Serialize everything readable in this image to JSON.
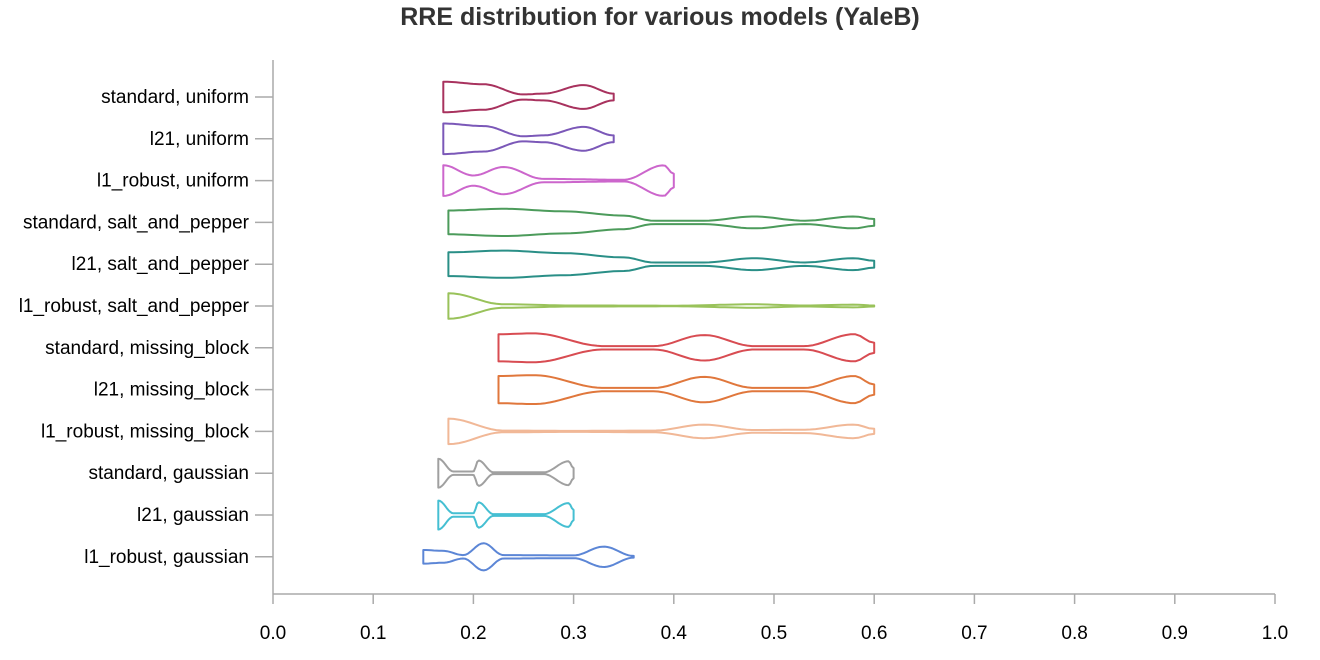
{
  "chart_data": {
    "type": "violin",
    "title": "RRE distribution for various models (YaleB)",
    "xlabel": "",
    "ylabel": "",
    "xlim": [
      0.0,
      1.0
    ],
    "x_ticks": [
      "0.0",
      "0.1",
      "0.2",
      "0.3",
      "0.4",
      "0.5",
      "0.6",
      "0.7",
      "0.8",
      "0.9",
      "1.0"
    ],
    "grid": false,
    "series": [
      {
        "name": "standard, uniform",
        "color": "#a8325e",
        "min": 0.17,
        "max": 0.34,
        "bulges": [
          [
            0.17,
            0.9
          ],
          [
            0.21,
            0.75
          ],
          [
            0.25,
            0.15
          ],
          [
            0.27,
            0.2
          ],
          [
            0.31,
            0.7
          ],
          [
            0.34,
            0.2
          ]
        ]
      },
      {
        "name": "l21, uniform",
        "color": "#7b58b8",
        "min": 0.17,
        "max": 0.34,
        "bulges": [
          [
            0.17,
            0.9
          ],
          [
            0.21,
            0.75
          ],
          [
            0.25,
            0.15
          ],
          [
            0.27,
            0.2
          ],
          [
            0.31,
            0.7
          ],
          [
            0.34,
            0.2
          ]
        ]
      },
      {
        "name": "l1_robust, uniform",
        "color": "#cc66cc",
        "min": 0.17,
        "max": 0.4,
        "bulges": [
          [
            0.17,
            0.9
          ],
          [
            0.2,
            0.3
          ],
          [
            0.23,
            0.8
          ],
          [
            0.27,
            0.1
          ],
          [
            0.35,
            0.05
          ],
          [
            0.39,
            0.9
          ],
          [
            0.4,
            0.4
          ]
        ]
      },
      {
        "name": "standard, salt_and_pepper",
        "color": "#4c9b5b",
        "min": 0.175,
        "max": 0.6,
        "bulges": [
          [
            0.175,
            0.7
          ],
          [
            0.23,
            0.8
          ],
          [
            0.29,
            0.65
          ],
          [
            0.35,
            0.4
          ],
          [
            0.38,
            0.1
          ],
          [
            0.43,
            0.1
          ],
          [
            0.48,
            0.35
          ],
          [
            0.53,
            0.1
          ],
          [
            0.58,
            0.35
          ],
          [
            0.6,
            0.2
          ]
        ]
      },
      {
        "name": "l21, salt_and_pepper",
        "color": "#2a8f87",
        "min": 0.175,
        "max": 0.6,
        "bulges": [
          [
            0.175,
            0.7
          ],
          [
            0.23,
            0.8
          ],
          [
            0.29,
            0.65
          ],
          [
            0.35,
            0.4
          ],
          [
            0.38,
            0.1
          ],
          [
            0.43,
            0.1
          ],
          [
            0.48,
            0.35
          ],
          [
            0.53,
            0.1
          ],
          [
            0.58,
            0.35
          ],
          [
            0.6,
            0.2
          ]
        ]
      },
      {
        "name": "l1_robust, salt_and_pepper",
        "color": "#99c25a",
        "min": 0.175,
        "max": 0.6,
        "bulges": [
          [
            0.175,
            0.75
          ],
          [
            0.23,
            0.1
          ],
          [
            0.3,
            0.03
          ],
          [
            0.4,
            0.02
          ],
          [
            0.48,
            0.1
          ],
          [
            0.53,
            0.03
          ],
          [
            0.58,
            0.08
          ],
          [
            0.6,
            0.03
          ]
        ]
      },
      {
        "name": "standard, missing_block",
        "color": "#d84c52",
        "min": 0.225,
        "max": 0.6,
        "bulges": [
          [
            0.225,
            0.8
          ],
          [
            0.26,
            0.85
          ],
          [
            0.33,
            0.1
          ],
          [
            0.38,
            0.1
          ],
          [
            0.43,
            0.75
          ],
          [
            0.48,
            0.1
          ],
          [
            0.53,
            0.1
          ],
          [
            0.58,
            0.8
          ],
          [
            0.6,
            0.3
          ]
        ]
      },
      {
        "name": "l21, missing_block",
        "color": "#e0773c",
        "min": 0.225,
        "max": 0.6,
        "bulges": [
          [
            0.225,
            0.8
          ],
          [
            0.26,
            0.85
          ],
          [
            0.33,
            0.1
          ],
          [
            0.38,
            0.1
          ],
          [
            0.43,
            0.75
          ],
          [
            0.48,
            0.1
          ],
          [
            0.53,
            0.1
          ],
          [
            0.58,
            0.8
          ],
          [
            0.6,
            0.3
          ]
        ]
      },
      {
        "name": "l1_robust, missing_block",
        "color": "#f1b897",
        "min": 0.175,
        "max": 0.6,
        "bulges": [
          [
            0.175,
            0.75
          ],
          [
            0.23,
            0.05
          ],
          [
            0.3,
            0.03
          ],
          [
            0.38,
            0.05
          ],
          [
            0.43,
            0.4
          ],
          [
            0.48,
            0.08
          ],
          [
            0.53,
            0.1
          ],
          [
            0.58,
            0.4
          ],
          [
            0.6,
            0.15
          ]
        ]
      },
      {
        "name": "standard, gaussian",
        "color": "#a0a0a0",
        "min": 0.165,
        "max": 0.3,
        "bulges": [
          [
            0.165,
            0.85
          ],
          [
            0.18,
            0.1
          ],
          [
            0.2,
            0.1
          ],
          [
            0.205,
            0.75
          ],
          [
            0.22,
            0.05
          ],
          [
            0.27,
            0.05
          ],
          [
            0.295,
            0.7
          ],
          [
            0.3,
            0.3
          ]
        ]
      },
      {
        "name": "l21, gaussian",
        "color": "#45bfd2",
        "min": 0.165,
        "max": 0.3,
        "bulges": [
          [
            0.165,
            0.85
          ],
          [
            0.18,
            0.1
          ],
          [
            0.2,
            0.1
          ],
          [
            0.205,
            0.75
          ],
          [
            0.22,
            0.05
          ],
          [
            0.27,
            0.05
          ],
          [
            0.295,
            0.7
          ],
          [
            0.3,
            0.3
          ]
        ]
      },
      {
        "name": "l1_robust, gaussian",
        "color": "#5c86d6",
        "min": 0.15,
        "max": 0.36,
        "bulges": [
          [
            0.15,
            0.4
          ],
          [
            0.17,
            0.35
          ],
          [
            0.19,
            0.1
          ],
          [
            0.21,
            0.8
          ],
          [
            0.23,
            0.1
          ],
          [
            0.3,
            0.08
          ],
          [
            0.33,
            0.6
          ],
          [
            0.36,
            0.05
          ]
        ]
      }
    ]
  }
}
